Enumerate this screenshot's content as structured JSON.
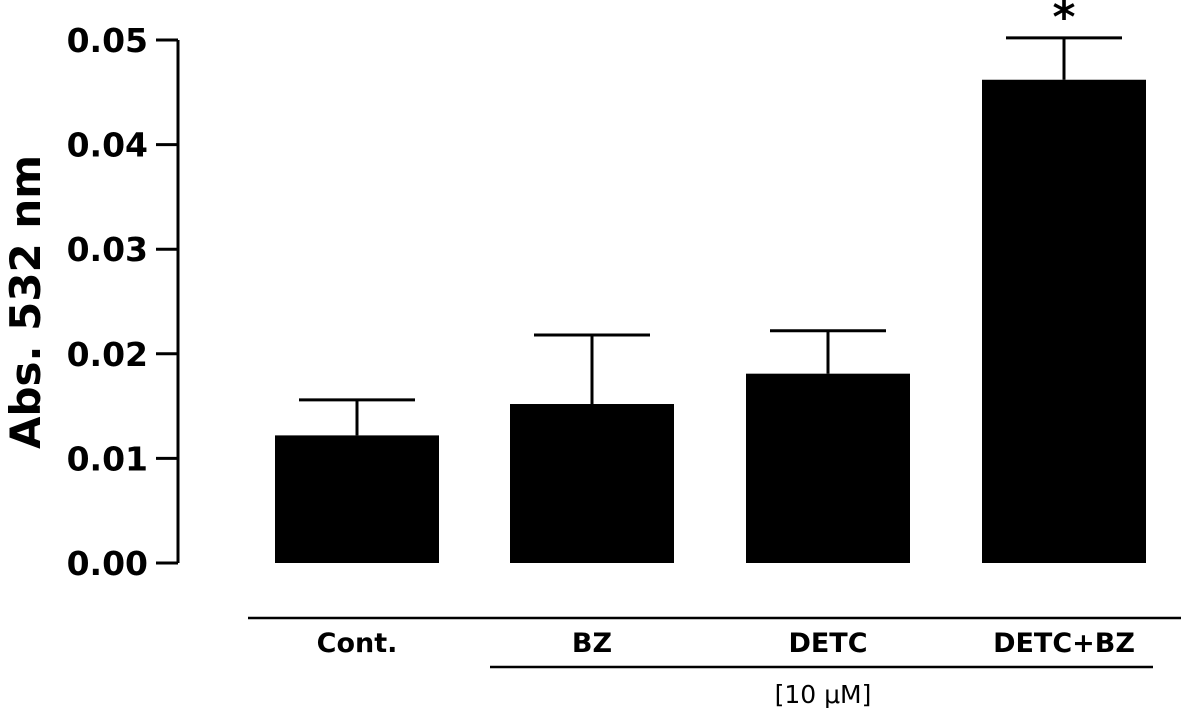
{
  "chart_data": {
    "type": "bar",
    "title": "",
    "ylabel": "Abs. 532 nm",
    "xlabel": "",
    "ylim": [
      0,
      0.05
    ],
    "yticks": [
      "0.00",
      "0.01",
      "0.02",
      "0.03",
      "0.04",
      "0.05"
    ],
    "categories": [
      "Cont.",
      "BZ",
      "DETC",
      "DETC+BZ"
    ],
    "values": [
      0.0122,
      0.0152,
      0.0181,
      0.0462
    ],
    "errors": [
      0.0034,
      0.0066,
      0.0041,
      0.004
    ],
    "significance": [
      "",
      "",
      "",
      "*"
    ],
    "group_label": "[10 μM]",
    "bar_color": "#000000"
  }
}
